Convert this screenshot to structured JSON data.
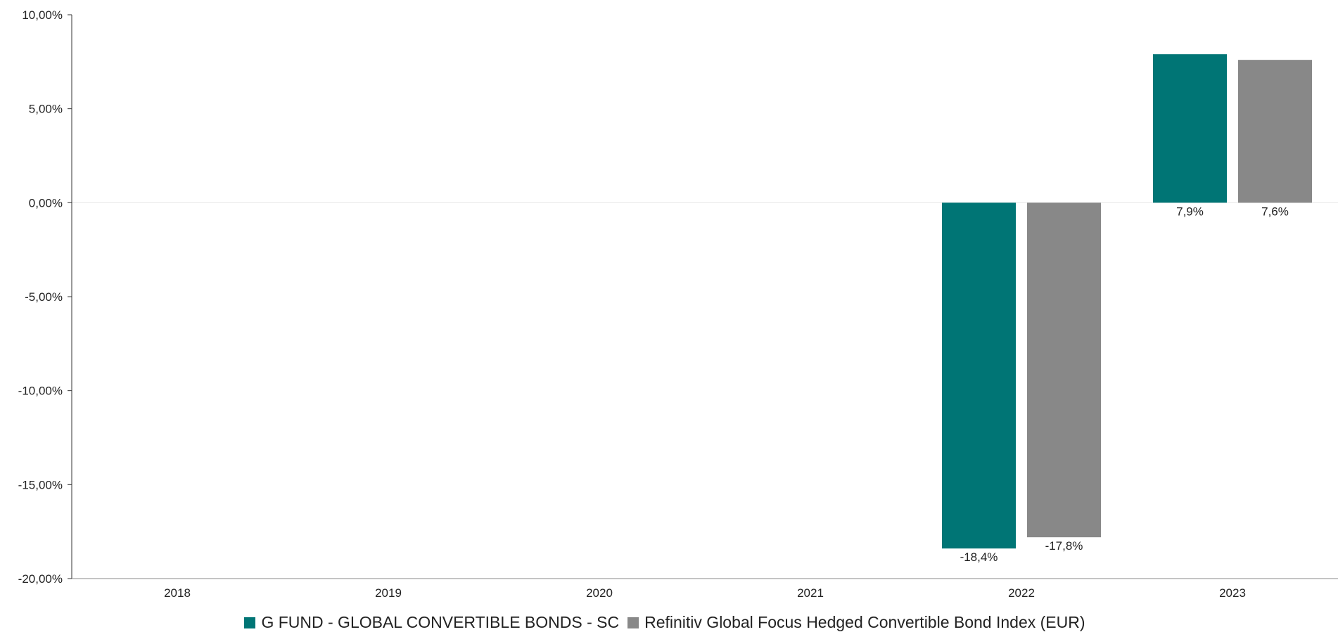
{
  "chart_data": {
    "type": "bar",
    "title": "",
    "xlabel": "",
    "ylabel": "",
    "categories": [
      "2018",
      "2019",
      "2020",
      "2021",
      "2022",
      "2023"
    ],
    "series": [
      {
        "name": "G FUND - GLOBAL CONVERTIBLE BONDS - SC",
        "color": "#007575",
        "values": [
          null,
          null,
          null,
          null,
          -18.4,
          7.9
        ],
        "labels": [
          "",
          "",
          "",
          "",
          "-18,4%",
          "7,9%"
        ]
      },
      {
        "name": "Refinitiv Global Focus Hedged Convertible Bond Index (EUR)",
        "color": "#888888",
        "values": [
          null,
          null,
          null,
          null,
          -17.8,
          7.6
        ],
        "labels": [
          "",
          "",
          "",
          "",
          "-17,8%",
          "7,6%"
        ]
      }
    ],
    "ylim": [
      -20,
      10
    ],
    "yticks": [
      10,
      5,
      0,
      -5,
      -10,
      -15,
      -20
    ],
    "ytick_labels": [
      "10,00%",
      "5,00%",
      "0,00%",
      "-5,00%",
      "-10,00%",
      "-15,00%",
      "-20,00%"
    ],
    "grid": false,
    "zero_line": true,
    "legend_position": "bottom"
  }
}
